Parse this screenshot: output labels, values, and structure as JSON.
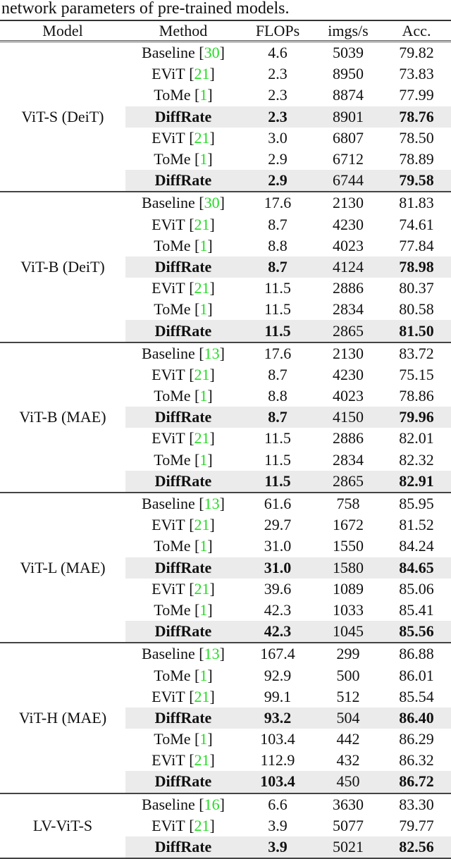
{
  "caption": "network parameters of pre-trained models.",
  "table": {
    "headers": [
      "Model",
      "Method",
      "FLOPs",
      "imgs/s",
      "Acc."
    ],
    "groups": [
      {
        "model": "ViT-S (DeiT)",
        "rows": [
          {
            "method": "Baseline",
            "ref": "30",
            "flops": "4.6",
            "imgs": "5039",
            "acc": "79.82",
            "highlight": false
          },
          {
            "method": "EViT",
            "ref": "21",
            "flops": "2.3",
            "imgs": "8950",
            "acc": "73.83",
            "highlight": false
          },
          {
            "method": "ToMe",
            "ref": "1",
            "flops": "2.3",
            "imgs": "8874",
            "acc": "77.99",
            "highlight": false
          },
          {
            "method": "DiffRate",
            "ref": "",
            "flops": "2.3",
            "imgs": "8901",
            "acc": "78.76",
            "highlight": true
          },
          {
            "method": "EViT",
            "ref": "21",
            "flops": "3.0",
            "imgs": "6807",
            "acc": "78.50",
            "highlight": false
          },
          {
            "method": "ToMe",
            "ref": "1",
            "flops": "2.9",
            "imgs": "6712",
            "acc": "78.89",
            "highlight": false
          },
          {
            "method": "DiffRate",
            "ref": "",
            "flops": "2.9",
            "imgs": "6744",
            "acc": "79.58",
            "highlight": true
          }
        ]
      },
      {
        "model": "ViT-B (DeiT)",
        "rows": [
          {
            "method": "Baseline",
            "ref": "30",
            "flops": "17.6",
            "imgs": "2130",
            "acc": "81.83",
            "highlight": false
          },
          {
            "method": "EViT",
            "ref": "21",
            "flops": "8.7",
            "imgs": "4230",
            "acc": "74.61",
            "highlight": false
          },
          {
            "method": "ToMe",
            "ref": "1",
            "flops": "8.8",
            "imgs": "4023",
            "acc": "77.84",
            "highlight": false
          },
          {
            "method": "DiffRate",
            "ref": "",
            "flops": "8.7",
            "imgs": "4124",
            "acc": "78.98",
            "highlight": true
          },
          {
            "method": "EViT",
            "ref": "21",
            "flops": "11.5",
            "imgs": "2886",
            "acc": "80.37",
            "highlight": false
          },
          {
            "method": "ToMe",
            "ref": "1",
            "flops": "11.5",
            "imgs": "2834",
            "acc": "80.58",
            "highlight": false
          },
          {
            "method": "DiffRate",
            "ref": "",
            "flops": "11.5",
            "imgs": "2865",
            "acc": "81.50",
            "highlight": true
          }
        ]
      },
      {
        "model": "ViT-B (MAE)",
        "rows": [
          {
            "method": "Baseline",
            "ref": "13",
            "flops": "17.6",
            "imgs": "2130",
            "acc": "83.72",
            "highlight": false
          },
          {
            "method": "EViT",
            "ref": "21",
            "flops": "8.7",
            "imgs": "4230",
            "acc": "75.15",
            "highlight": false
          },
          {
            "method": "ToMe",
            "ref": "1",
            "flops": "8.8",
            "imgs": "4023",
            "acc": "78.86",
            "highlight": false
          },
          {
            "method": "DiffRate",
            "ref": "",
            "flops": "8.7",
            "imgs": "4150",
            "acc": "79.96",
            "highlight": true
          },
          {
            "method": "EViT",
            "ref": "21",
            "flops": "11.5",
            "imgs": "2886",
            "acc": "82.01",
            "highlight": false
          },
          {
            "method": "ToMe",
            "ref": "1",
            "flops": "11.5",
            "imgs": "2834",
            "acc": "82.32",
            "highlight": false
          },
          {
            "method": "DiffRate",
            "ref": "",
            "flops": "11.5",
            "imgs": "2865",
            "acc": "82.91",
            "highlight": true
          }
        ]
      },
      {
        "model": "ViT-L (MAE)",
        "rows": [
          {
            "method": "Baseline",
            "ref": "13",
            "flops": "61.6",
            "imgs": "758",
            "acc": "85.95",
            "highlight": false
          },
          {
            "method": "EViT",
            "ref": "21",
            "flops": "29.7",
            "imgs": "1672",
            "acc": "81.52",
            "highlight": false
          },
          {
            "method": "ToMe",
            "ref": "1",
            "flops": "31.0",
            "imgs": "1550",
            "acc": "84.24",
            "highlight": false
          },
          {
            "method": "DiffRate",
            "ref": "",
            "flops": "31.0",
            "imgs": "1580",
            "acc": "84.65",
            "highlight": true
          },
          {
            "method": "EViT",
            "ref": "21",
            "flops": "39.6",
            "imgs": "1089",
            "acc": "85.06",
            "highlight": false
          },
          {
            "method": "ToMe",
            "ref": "1",
            "flops": "42.3",
            "imgs": "1033",
            "acc": "85.41",
            "highlight": false
          },
          {
            "method": "DiffRate",
            "ref": "",
            "flops": "42.3",
            "imgs": "1045",
            "acc": "85.56",
            "highlight": true
          }
        ]
      },
      {
        "model": "ViT-H (MAE)",
        "rows": [
          {
            "method": "Baseline",
            "ref": "13",
            "flops": "167.4",
            "imgs": "299",
            "acc": "86.88",
            "highlight": false
          },
          {
            "method": "ToMe",
            "ref": "1",
            "flops": "92.9",
            "imgs": "500",
            "acc": "86.01",
            "highlight": false
          },
          {
            "method": "EViT",
            "ref": "21",
            "flops": "99.1",
            "imgs": "512",
            "acc": "85.54",
            "highlight": false
          },
          {
            "method": "DiffRate",
            "ref": "",
            "flops": "93.2",
            "imgs": "504",
            "acc": "86.40",
            "highlight": true
          },
          {
            "method": "ToMe",
            "ref": "1",
            "flops": "103.4",
            "imgs": "442",
            "acc": "86.29",
            "highlight": false
          },
          {
            "method": "EViT",
            "ref": "21",
            "flops": "112.9",
            "imgs": "432",
            "acc": "86.32",
            "highlight": false
          },
          {
            "method": "DiffRate",
            "ref": "",
            "flops": "103.4",
            "imgs": "450",
            "acc": "86.72",
            "highlight": true
          }
        ]
      },
      {
        "model": "LV-ViT-S",
        "rows": [
          {
            "method": "Baseline",
            "ref": "16",
            "flops": "6.6",
            "imgs": "3630",
            "acc": "83.30",
            "highlight": false
          },
          {
            "method": "EViT",
            "ref": "21",
            "flops": "3.9",
            "imgs": "5077",
            "acc": "79.77",
            "highlight": false
          },
          {
            "method": "DiffRate",
            "ref": "",
            "flops": "3.9",
            "imgs": "5021",
            "acc": "82.56",
            "highlight": true
          }
        ]
      }
    ]
  },
  "colors": {
    "citation": "#22dd22",
    "highlight_row": "#ebebeb",
    "text": "#111111"
  }
}
